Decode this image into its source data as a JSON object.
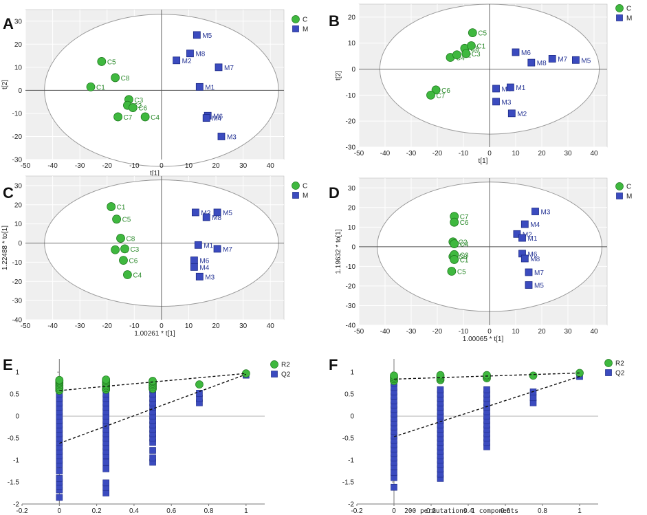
{
  "colors": {
    "green": "#3fb83f",
    "green_dark": "#1f7a1f",
    "green_text": "#2b8a2b",
    "blue": "#3b4bbf",
    "blue_dark": "#1c2a86",
    "blue_text": "#263595",
    "bg": "#efefef",
    "grid": "#ffffff"
  },
  "chart_data": [
    {
      "panel": "A",
      "type": "scatter",
      "xlabel": "t[1]",
      "ylabel": "t[2]",
      "xlim": [
        -50,
        45
      ],
      "ylim": [
        -30,
        35
      ],
      "xticks": [
        -50,
        -40,
        -30,
        -20,
        -10,
        0,
        10,
        20,
        30,
        40
      ],
      "yticks": [
        -30,
        -20,
        -10,
        0,
        10,
        20,
        30
      ],
      "ellipse": {
        "rx": 43,
        "ry": 33
      },
      "legend": [
        {
          "label": "C",
          "shape": "circle"
        },
        {
          "label": "M",
          "shape": "square"
        }
      ],
      "points": [
        {
          "label": "C1",
          "x": -26,
          "y": 1.5,
          "g": "C"
        },
        {
          "label": "C5",
          "x": -22,
          "y": 12.5,
          "g": "C"
        },
        {
          "label": "C8",
          "x": -17,
          "y": 5.5,
          "g": "C"
        },
        {
          "label": "C3",
          "x": -12,
          "y": -4,
          "g": "C"
        },
        {
          "label": "C2",
          "x": -12.5,
          "y": -6.5,
          "g": "C"
        },
        {
          "label": "C6",
          "x": -10.5,
          "y": -7.5,
          "g": "C"
        },
        {
          "label": "C7",
          "x": -16,
          "y": -11.5,
          "g": "C"
        },
        {
          "label": "C4",
          "x": -6,
          "y": -11.5,
          "g": "C"
        },
        {
          "label": "M5",
          "x": 13,
          "y": 24,
          "g": "M"
        },
        {
          "label": "M8",
          "x": 10.5,
          "y": 16,
          "g": "M"
        },
        {
          "label": "M2",
          "x": 5.5,
          "y": 13,
          "g": "M"
        },
        {
          "label": "M7",
          "x": 21,
          "y": 10,
          "g": "M"
        },
        {
          "label": "M1",
          "x": 14,
          "y": 1.5,
          "g": "M"
        },
        {
          "label": "M6",
          "x": 17,
          "y": -11,
          "g": "M"
        },
        {
          "label": "M4",
          "x": 16.5,
          "y": -12,
          "g": "M"
        },
        {
          "label": "M3",
          "x": 22,
          "y": -20,
          "g": "M"
        }
      ]
    },
    {
      "panel": "B",
      "type": "scatter",
      "xlabel": "t[1]",
      "ylabel": "t[2]",
      "xlim": [
        -50,
        45
      ],
      "ylim": [
        -30,
        25
      ],
      "xticks": [
        -50,
        -40,
        -30,
        -20,
        -10,
        0,
        10,
        20,
        30,
        40
      ],
      "yticks": [
        -30,
        -20,
        -10,
        0,
        10,
        20
      ],
      "ellipse": {
        "rx": 42,
        "ry": 25
      },
      "legend": [
        {
          "label": "C",
          "shape": "circle"
        },
        {
          "label": "M",
          "shape": "square"
        }
      ],
      "points": [
        {
          "label": "C5",
          "x": -6.5,
          "y": 14,
          "g": "C"
        },
        {
          "label": "C8",
          "x": -9.5,
          "y": 8,
          "g": "C"
        },
        {
          "label": "C1",
          "x": -7,
          "y": 9,
          "g": "C"
        },
        {
          "label": "C4",
          "x": -15,
          "y": 4.5,
          "g": "C"
        },
        {
          "label": "C2",
          "x": -12.5,
          "y": 5.5,
          "g": "C"
        },
        {
          "label": "C3",
          "x": -9,
          "y": 6,
          "g": "C"
        },
        {
          "label": "C6",
          "x": -20.5,
          "y": -8,
          "g": "C"
        },
        {
          "label": "C7",
          "x": -22.5,
          "y": -10,
          "g": "C"
        },
        {
          "label": "M6",
          "x": 10,
          "y": 6.5,
          "g": "M"
        },
        {
          "label": "M8",
          "x": 16,
          "y": 2.5,
          "g": "M"
        },
        {
          "label": "M7",
          "x": 24,
          "y": 4,
          "g": "M"
        },
        {
          "label": "M5",
          "x": 33,
          "y": 3.5,
          "g": "M"
        },
        {
          "label": "M4",
          "x": 2.5,
          "y": -7.5,
          "g": "M"
        },
        {
          "label": "M1",
          "x": 8,
          "y": -7,
          "g": "M"
        },
        {
          "label": "M3",
          "x": 2.5,
          "y": -12.5,
          "g": "M"
        },
        {
          "label": "M2",
          "x": 8.5,
          "y": -17,
          "g": "M"
        }
      ]
    },
    {
      "panel": "C",
      "type": "scatter",
      "xlabel": "1.00261 * t[1]",
      "ylabel": "1.22488 * to[1]",
      "xlim": [
        -50,
        45
      ],
      "ylim": [
        -40,
        35
      ],
      "xticks": [
        -50,
        -40,
        -30,
        -20,
        -10,
        0,
        10,
        20,
        30,
        40
      ],
      "yticks": [
        -40,
        -30,
        -20,
        -10,
        0,
        10,
        20,
        30
      ],
      "ellipse": {
        "rx": 43,
        "ry": 33
      },
      "legend": [
        {
          "label": "C",
          "shape": "circle"
        },
        {
          "label": "M",
          "shape": "square"
        }
      ],
      "points": [
        {
          "label": "C1",
          "x": -18.5,
          "y": 19,
          "g": "C"
        },
        {
          "label": "C5",
          "x": -16.5,
          "y": 12.5,
          "g": "C"
        },
        {
          "label": "C8",
          "x": -15,
          "y": 2.5,
          "g": "C"
        },
        {
          "label": "C7",
          "x": -17,
          "y": -3.5,
          "g": "C"
        },
        {
          "label": "C3",
          "x": -13.5,
          "y": -3,
          "g": "C"
        },
        {
          "label": "C6",
          "x": -14,
          "y": -9,
          "g": "C"
        },
        {
          "label": "C4",
          "x": -12.5,
          "y": -16.5,
          "g": "C"
        },
        {
          "label": "M2",
          "x": 12.5,
          "y": 16,
          "g": "M"
        },
        {
          "label": "M8",
          "x": 16.5,
          "y": 13.5,
          "g": "M"
        },
        {
          "label": "M5",
          "x": 20.5,
          "y": 16,
          "g": "M"
        },
        {
          "label": "M1",
          "x": 13.5,
          "y": -1,
          "g": "M"
        },
        {
          "label": "M7",
          "x": 20.5,
          "y": -3,
          "g": "M"
        },
        {
          "label": "M6",
          "x": 12,
          "y": -9,
          "g": "M"
        },
        {
          "label": "M4",
          "x": 12,
          "y": -12.5,
          "g": "M"
        },
        {
          "label": "M3",
          "x": 14,
          "y": -17.5,
          "g": "M"
        }
      ]
    },
    {
      "panel": "D",
      "type": "scatter",
      "xlabel": "1.00065 * t[1]",
      "ylabel": "1.19632 * to[1]",
      "xlim": [
        -50,
        45
      ],
      "ylim": [
        -40,
        35
      ],
      "xticks": [
        -50,
        -40,
        -30,
        -20,
        -10,
        0,
        10,
        20,
        30,
        40
      ],
      "yticks": [
        -40,
        -30,
        -20,
        -10,
        0,
        10,
        20,
        30
      ],
      "ellipse": {
        "rx": 43,
        "ry": 33
      },
      "legend": [
        {
          "label": "C",
          "shape": "circle"
        },
        {
          "label": "M",
          "shape": "square"
        }
      ],
      "points": [
        {
          "label": "C7",
          "x": -13.5,
          "y": 15.5,
          "g": "C"
        },
        {
          "label": "C6",
          "x": -13.5,
          "y": 12.5,
          "g": "C"
        },
        {
          "label": "C2",
          "x": -14,
          "y": 2.5,
          "g": "C"
        },
        {
          "label": "C4",
          "x": -13.5,
          "y": 1.5,
          "g": "C"
        },
        {
          "label": "C8",
          "x": -14,
          "y": -5,
          "g": "C"
        },
        {
          "label": "C3",
          "x": -13.5,
          "y": -4,
          "g": "C"
        },
        {
          "label": "C1",
          "x": -13.5,
          "y": -6.5,
          "g": "C"
        },
        {
          "label": "C5",
          "x": -14.5,
          "y": -12.5,
          "g": "C"
        },
        {
          "label": "M3",
          "x": 17.5,
          "y": 18,
          "g": "M"
        },
        {
          "label": "M4",
          "x": 13.5,
          "y": 11.5,
          "g": "M"
        },
        {
          "label": "M2",
          "x": 10.5,
          "y": 6.5,
          "g": "M"
        },
        {
          "label": "M1",
          "x": 12.5,
          "y": 4.5,
          "g": "M"
        },
        {
          "label": "M6",
          "x": 12.5,
          "y": -3.5,
          "g": "M"
        },
        {
          "label": "M8",
          "x": 13.5,
          "y": -6,
          "g": "M"
        },
        {
          "label": "M7",
          "x": 15,
          "y": -13,
          "g": "M"
        },
        {
          "label": "M5",
          "x": 15,
          "y": -19.5,
          "g": "M"
        }
      ]
    },
    {
      "panel": "E",
      "type": "scatter",
      "xlabel": "",
      "ylabel": "",
      "xlim": [
        -0.2,
        1.1
      ],
      "ylim": [
        -2,
        1.3
      ],
      "xticks": [
        -0.2,
        0,
        0.2,
        0.4,
        0.6,
        0.8,
        1
      ],
      "yticks": [
        -2,
        -1.5,
        -1,
        -0.5,
        0,
        0.5,
        1
      ],
      "legend": [
        {
          "label": "R2",
          "shape": "circle"
        },
        {
          "label": "Q2",
          "shape": "square"
        }
      ],
      "r2_line": {
        "x": [
          0,
          1
        ],
        "y": [
          0.58,
          0.97
        ]
      },
      "q2_line": {
        "x": [
          0,
          1
        ],
        "y": [
          -0.62,
          0.95
        ]
      },
      "r2_points": [
        {
          "x": 0,
          "values": [
            0.58,
            0.62,
            0.66,
            0.7,
            0.74,
            0.77,
            0.8,
            0.82
          ]
        },
        {
          "x": 0.25,
          "values": [
            0.6,
            0.64,
            0.68,
            0.72,
            0.76,
            0.8,
            0.83
          ]
        },
        {
          "x": 0.5,
          "values": [
            0.62,
            0.66,
            0.7,
            0.74,
            0.78,
            0.8
          ]
        },
        {
          "x": 0.75,
          "values": [
            0.72
          ]
        },
        {
          "x": 1,
          "values": [
            0.97
          ]
        }
      ],
      "q2_points": [
        {
          "x": 0,
          "values": [
            -1.85,
            -1.68,
            -1.6,
            -1.5,
            -1.42,
            -1.25,
            -1.1,
            -1.0,
            -0.9,
            -0.8,
            -0.7,
            -0.6,
            -0.5,
            -0.4,
            -0.3,
            -0.2,
            -0.1,
            0,
            0.1,
            0.2,
            0.3,
            0.4,
            0.5
          ]
        },
        {
          "x": 0.25,
          "values": [
            -1.75,
            -1.62,
            -1.52,
            -1.2,
            -1.05,
            -0.9,
            -0.8,
            -0.7,
            -0.6,
            -0.5,
            -0.4,
            -0.3,
            -0.2,
            -0.1,
            0,
            0.1,
            0.2,
            0.3,
            0.4,
            0.5
          ]
        },
        {
          "x": 0.5,
          "values": [
            -1.05,
            -0.95,
            -0.78,
            -0.6,
            -0.5,
            -0.4,
            -0.3,
            -0.2,
            -0.1,
            0,
            0.1,
            0.2,
            0.3,
            0.4,
            0.5,
            0.6
          ]
        },
        {
          "x": 0.75,
          "values": [
            0.3,
            0.4,
            0.52
          ]
        },
        {
          "x": 1,
          "values": [
            0.93
          ]
        }
      ]
    },
    {
      "panel": "F",
      "type": "scatter",
      "xlabel": "200 permutations 1 components",
      "ylabel": "",
      "xlim": [
        -0.2,
        1.1
      ],
      "ylim": [
        -2,
        1.3
      ],
      "xticks": [
        -0.2,
        0,
        0.2,
        0.4,
        0.6,
        0.8,
        1
      ],
      "yticks": [
        -2,
        -1.5,
        -1,
        -0.5,
        0,
        0.5,
        1
      ],
      "legend": [
        {
          "label": "R2",
          "shape": "circle"
        },
        {
          "label": "Q2",
          "shape": "square"
        }
      ],
      "r2_line": {
        "x": [
          0,
          1
        ],
        "y": [
          0.84,
          0.98
        ]
      },
      "q2_line": {
        "x": [
          0,
          1
        ],
        "y": [
          -0.47,
          0.9
        ]
      },
      "r2_points": [
        {
          "x": 0,
          "values": [
            0.8,
            0.84,
            0.88,
            0.92
          ]
        },
        {
          "x": 0.25,
          "values": [
            0.82,
            0.86,
            0.9,
            0.93
          ]
        },
        {
          "x": 0.5,
          "values": [
            0.86,
            0.9,
            0.93
          ]
        },
        {
          "x": 0.75,
          "values": [
            0.92
          ]
        },
        {
          "x": 1,
          "values": [
            0.98
          ]
        }
      ],
      "q2_points": [
        {
          "x": 0,
          "values": [
            -1.62,
            -1.4,
            -1.28,
            -1.15,
            -1.05,
            -0.95,
            -0.85,
            -0.75,
            -0.65,
            -0.55,
            -0.45,
            -0.35,
            -0.25,
            -0.15,
            -0.05,
            0.05,
            0.15,
            0.25,
            0.35,
            0.45,
            0.55,
            0.65,
            0.75
          ]
        },
        {
          "x": 0.25,
          "values": [
            -1.42,
            -1.32,
            -1.2,
            -1.1,
            -1.0,
            -0.9,
            -0.8,
            -0.7,
            -0.6,
            -0.5,
            -0.4,
            -0.3,
            -0.2,
            -0.1,
            0,
            0.1,
            0.2,
            0.3,
            0.4,
            0.5,
            0.6
          ]
        },
        {
          "x": 0.5,
          "values": [
            -0.7,
            -0.6,
            -0.5,
            -0.4,
            -0.3,
            -0.2,
            -0.1,
            0,
            0.1,
            0.2,
            0.3,
            0.4,
            0.5,
            0.6
          ]
        },
        {
          "x": 0.75,
          "values": [
            0.3,
            0.42,
            0.55
          ]
        },
        {
          "x": 1,
          "values": [
            0.9
          ]
        }
      ]
    }
  ]
}
